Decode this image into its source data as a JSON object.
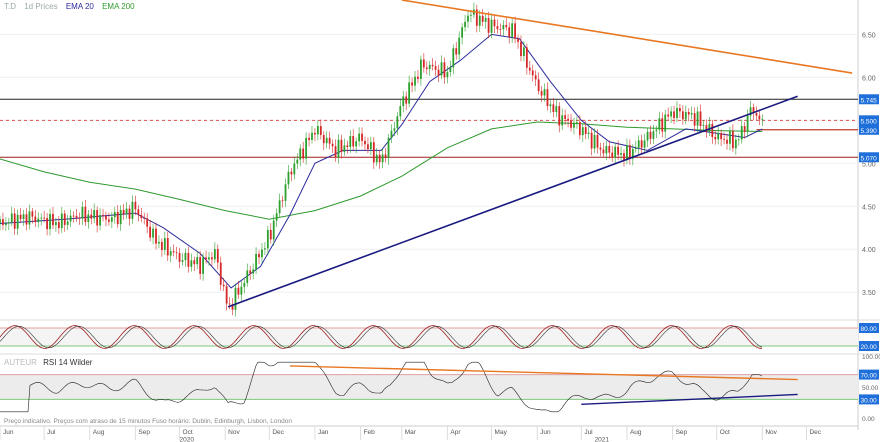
{
  "legend": {
    "symbol": "T.D",
    "timeframe": "1d Prices",
    "ema20_label": "EMA 20",
    "ema200_label": "EMA 200",
    "ema20_color": "#2b2b9e",
    "ema200_color": "#2e9a2e"
  },
  "rsi_legend": {
    "prefix": "AUTEUR",
    "label": "RSI 14 Wilder"
  },
  "footnote": "Preço indicativo. Preços com atraso de 15 minutos    Fuso horário: Dublin, Edinburgh, Lisbon, London",
  "chart_data": {
    "type": "line",
    "main": {
      "y_ticks": [
        3.5,
        4.0,
        4.5,
        5.0,
        5.5,
        6.0,
        6.5
      ],
      "y_tick_labels": [
        "3.50",
        "4.00",
        "4.50",
        "5.00",
        "5.50",
        "6.00",
        "6.50"
      ],
      "ylim": [
        3.2,
        6.9
      ],
      "price_markers": [
        {
          "value": 5.745,
          "label": "5.745",
          "color": "#1e6fd9"
        },
        {
          "value": 5.5,
          "label": "5.500",
          "color": "#1e6fd9"
        },
        {
          "value": 5.39,
          "label": "5.390",
          "color": "#1e6fd9"
        },
        {
          "value": 5.07,
          "label": "5.070",
          "color": "#1e6fd9"
        }
      ],
      "price_series": [
        {
          "x": "2020-06-01",
          "y": 4.3
        },
        {
          "x": "2020-06-20",
          "y": 4.38
        },
        {
          "x": "2020-07-10",
          "y": 4.3
        },
        {
          "x": "2020-07-25",
          "y": 4.4
        },
        {
          "x": "2020-08-15",
          "y": 4.35
        },
        {
          "x": "2020-09-01",
          "y": 4.48
        },
        {
          "x": "2020-09-15",
          "y": 4.1
        },
        {
          "x": "2020-10-01",
          "y": 3.9
        },
        {
          "x": "2020-10-15",
          "y": 3.82
        },
        {
          "x": "2020-10-25",
          "y": 3.96
        },
        {
          "x": "2020-11-03",
          "y": 3.3
        },
        {
          "x": "2020-11-18",
          "y": 3.75
        },
        {
          "x": "2020-12-01",
          "y": 4.15
        },
        {
          "x": "2020-12-15",
          "y": 4.9
        },
        {
          "x": "2021-01-01",
          "y": 5.4
        },
        {
          "x": "2021-01-15",
          "y": 5.15
        },
        {
          "x": "2021-02-01",
          "y": 5.3
        },
        {
          "x": "2021-02-15",
          "y": 5.0
        },
        {
          "x": "2021-03-01",
          "y": 5.7
        },
        {
          "x": "2021-03-15",
          "y": 6.15
        },
        {
          "x": "2021-04-01",
          "y": 6.05
        },
        {
          "x": "2021-04-15",
          "y": 6.75
        },
        {
          "x": "2021-05-01",
          "y": 6.6
        },
        {
          "x": "2021-05-15",
          "y": 6.55
        },
        {
          "x": "2021-06-01",
          "y": 5.9
        },
        {
          "x": "2021-06-15",
          "y": 5.55
        },
        {
          "x": "2021-07-01",
          "y": 5.4
        },
        {
          "x": "2021-07-15",
          "y": 5.15
        },
        {
          "x": "2021-08-01",
          "y": 5.1
        },
        {
          "x": "2021-08-15",
          "y": 5.3
        },
        {
          "x": "2021-09-01",
          "y": 5.6
        },
        {
          "x": "2021-09-15",
          "y": 5.55
        },
        {
          "x": "2021-10-01",
          "y": 5.3
        },
        {
          "x": "2021-10-15",
          "y": 5.25
        },
        {
          "x": "2021-10-25",
          "y": 5.65
        },
        {
          "x": "2021-11-01",
          "y": 5.45
        }
      ],
      "ema20": [
        {
          "x": "2020-06-01",
          "y": 4.3
        },
        {
          "x": "2020-07-15",
          "y": 4.35
        },
        {
          "x": "2020-09-01",
          "y": 4.42
        },
        {
          "x": "2020-09-20",
          "y": 4.25
        },
        {
          "x": "2020-10-15",
          "y": 3.95
        },
        {
          "x": "2020-11-05",
          "y": 3.55
        },
        {
          "x": "2020-11-25",
          "y": 3.8
        },
        {
          "x": "2020-12-15",
          "y": 4.4
        },
        {
          "x": "2021-01-01",
          "y": 5.0
        },
        {
          "x": "2021-01-20",
          "y": 5.15
        },
        {
          "x": "2021-02-15",
          "y": 5.15
        },
        {
          "x": "2021-03-01",
          "y": 5.45
        },
        {
          "x": "2021-03-20",
          "y": 5.95
        },
        {
          "x": "2021-04-10",
          "y": 6.2
        },
        {
          "x": "2021-05-01",
          "y": 6.5
        },
        {
          "x": "2021-05-20",
          "y": 6.45
        },
        {
          "x": "2021-06-10",
          "y": 5.95
        },
        {
          "x": "2021-07-01",
          "y": 5.5
        },
        {
          "x": "2021-07-20",
          "y": 5.25
        },
        {
          "x": "2021-08-15",
          "y": 5.15
        },
        {
          "x": "2021-09-10",
          "y": 5.4
        },
        {
          "x": "2021-10-01",
          "y": 5.35
        },
        {
          "x": "2021-10-20",
          "y": 5.3
        },
        {
          "x": "2021-11-01",
          "y": 5.4
        }
      ],
      "ema200": [
        {
          "x": "2020-06-01",
          "y": 5.05
        },
        {
          "x": "2020-07-01",
          "y": 4.9
        },
        {
          "x": "2020-08-01",
          "y": 4.78
        },
        {
          "x": "2020-09-01",
          "y": 4.7
        },
        {
          "x": "2020-10-01",
          "y": 4.58
        },
        {
          "x": "2020-11-01",
          "y": 4.45
        },
        {
          "x": "2020-12-01",
          "y": 4.35
        },
        {
          "x": "2021-01-01",
          "y": 4.45
        },
        {
          "x": "2021-02-01",
          "y": 4.62
        },
        {
          "x": "2021-03-01",
          "y": 4.85
        },
        {
          "x": "2021-04-01",
          "y": 5.18
        },
        {
          "x": "2021-05-01",
          "y": 5.4
        },
        {
          "x": "2021-06-01",
          "y": 5.48
        },
        {
          "x": "2021-07-01",
          "y": 5.46
        },
        {
          "x": "2021-08-01",
          "y": 5.42
        },
        {
          "x": "2021-09-01",
          "y": 5.4
        },
        {
          "x": "2021-10-01",
          "y": 5.38
        },
        {
          "x": "2021-11-01",
          "y": 5.37
        }
      ],
      "trendlines": [
        {
          "name": "resistance",
          "color": "#e87722",
          "from": {
            "x": "2021-03-01",
            "y": 6.9
          },
          "to": {
            "x": "2022-01-01",
            "y": 6.05
          }
        },
        {
          "name": "support",
          "color": "#1a1a80",
          "from": {
            "x": "2020-11-03",
            "y": 3.33
          },
          "to": {
            "x": "2021-11-25",
            "y": 5.78
          }
        }
      ],
      "horizontal_lines": [
        {
          "value": 5.745,
          "color": "#222222",
          "style": "solid"
        },
        {
          "value": 5.5,
          "color": "#d9534f",
          "style": "dashed"
        },
        {
          "value": 5.07,
          "color": "#a01e1e",
          "style": "solid"
        }
      ]
    },
    "stoch": {
      "y_ticks": [
        80,
        20
      ],
      "y_tick_labels": [
        "80.00",
        "20.00"
      ],
      "ylim": [
        0,
        100
      ]
    },
    "rsi": {
      "y_ticks": [
        100,
        70,
        50,
        30,
        0
      ],
      "y_tick_labels": [
        "100.00",
        "70.00",
        "50.00",
        "30.00",
        "0.00"
      ],
      "ylim": [
        0,
        100
      ],
      "band": [
        30,
        70
      ],
      "trendlines": [
        {
          "color": "#e87722",
          "from": {
            "x": "2020-12-15",
            "y": 84
          },
          "to": {
            "x": "2021-11-25",
            "y": 62
          }
        },
        {
          "color": "#1a1a80",
          "from": {
            "x": "2021-07-01",
            "y": 22
          },
          "to": {
            "x": "2021-11-25",
            "y": 38
          }
        }
      ]
    },
    "x_axis": {
      "months": [
        "Jun",
        "Jul",
        "Aug",
        "Sep",
        "Oct",
        "Nov",
        "Dec",
        "Jan",
        "Feb",
        "Mar",
        "Apr",
        "May",
        "Jun",
        "Jul",
        "Aug",
        "Sep",
        "Oct",
        "Nov",
        "Dec"
      ],
      "years": [
        "2020",
        "2021"
      ]
    }
  }
}
